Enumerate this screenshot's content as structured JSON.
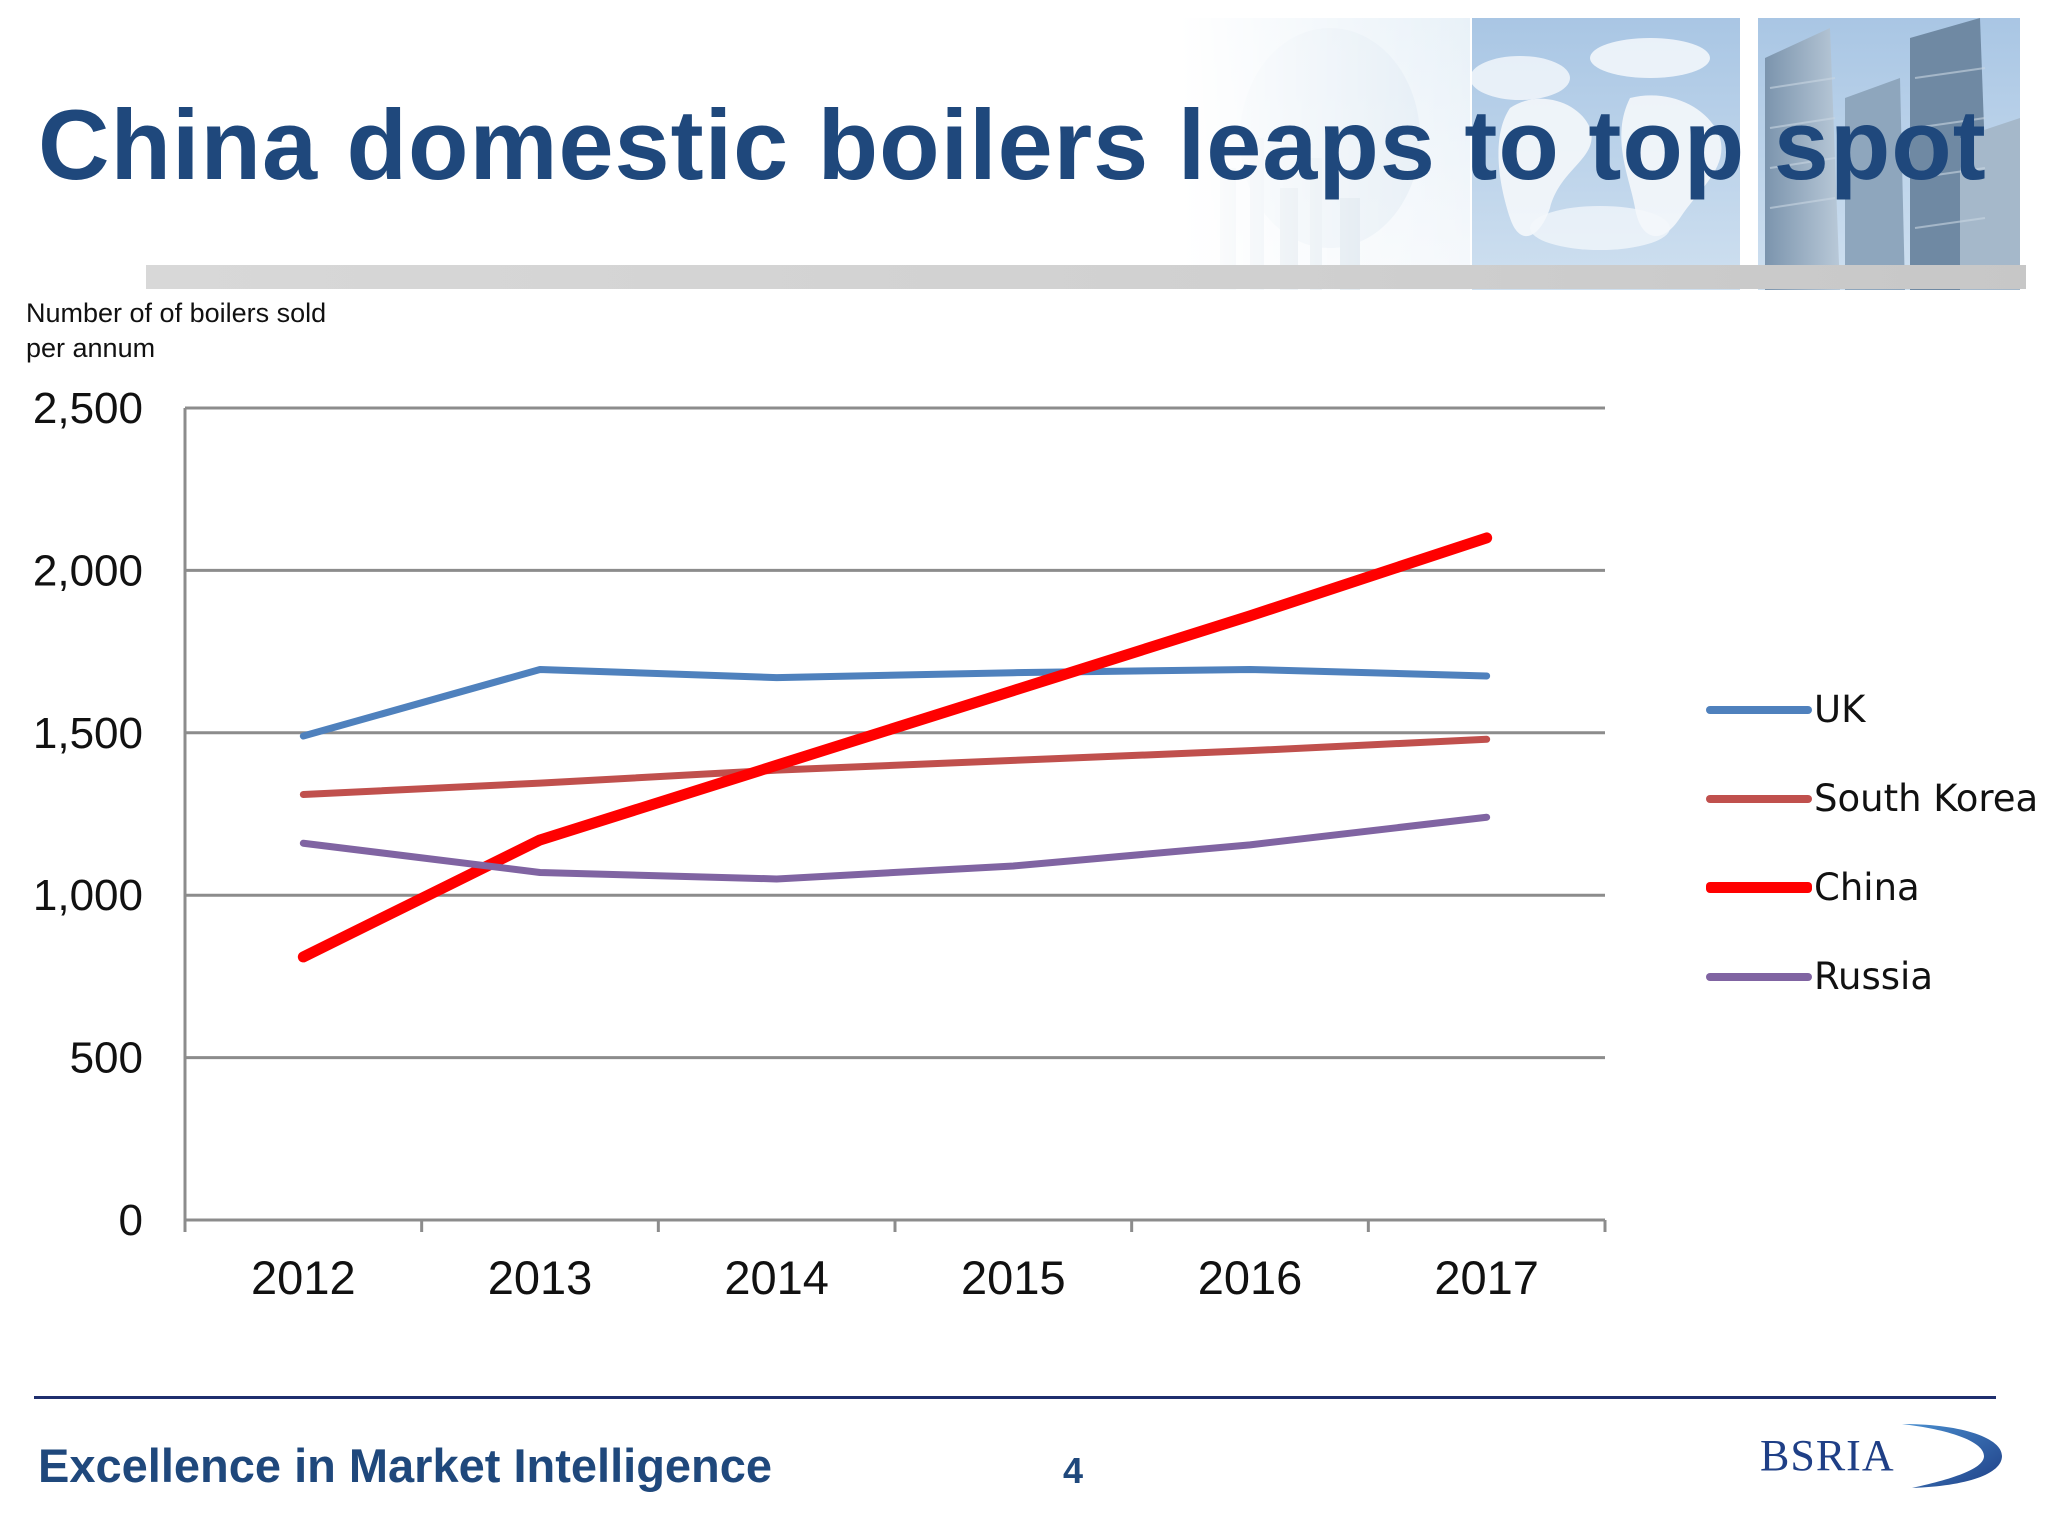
{
  "slide": {
    "title": "China domestic boilers leaps to top spot",
    "y_caption_line1": "Number of of boilers sold",
    "y_caption_line2": "per annum",
    "footer_text": "Excellence in Market Intelligence",
    "page_number": "4",
    "logo_text": "BSRIA"
  },
  "colors": {
    "title": "#1f487c",
    "footer_rule": "#1f2f6e",
    "grid": "#8c8c8c"
  },
  "chart_data": {
    "type": "line",
    "title": "",
    "xlabel": "",
    "ylabel": "Number of of boilers sold per annum",
    "categories": [
      "2012",
      "2013",
      "2014",
      "2015",
      "2016",
      "2017"
    ],
    "ylim": [
      0,
      2500
    ],
    "yticks": [
      0,
      500,
      1000,
      1500,
      2000,
      2500
    ],
    "ytick_labels": [
      "0",
      "500",
      "1,000",
      "1,500",
      "2,000",
      "2,500"
    ],
    "grid": true,
    "legend_position": "right",
    "series": [
      {
        "name": "UK",
        "color": "#4f81bd",
        "values": [
          1490,
          1695,
          1670,
          1685,
          1695,
          1675
        ]
      },
      {
        "name": "South Korea",
        "color": "#c0504d",
        "values": [
          1310,
          1345,
          1385,
          1415,
          1445,
          1480
        ]
      },
      {
        "name": "China",
        "color": "#ff0000",
        "values": [
          810,
          1170,
          1400,
          1630,
          1860,
          2100
        ]
      },
      {
        "name": "Russia",
        "color": "#8064a2",
        "values": [
          1160,
          1070,
          1050,
          1090,
          1155,
          1240
        ]
      }
    ]
  }
}
